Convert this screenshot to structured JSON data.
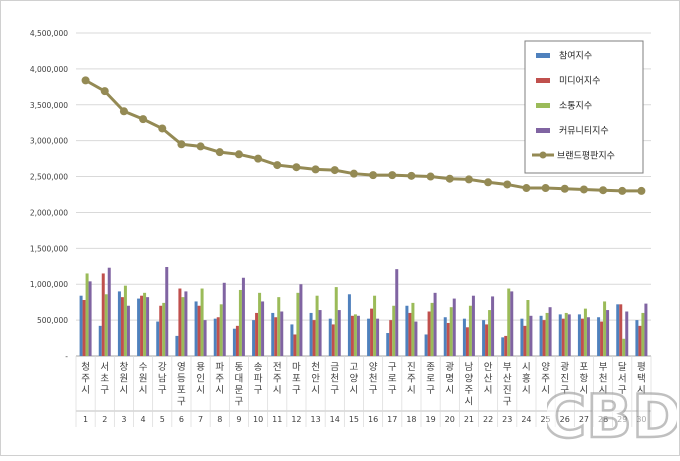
{
  "chart_data": {
    "type": "bar",
    "title": "",
    "xlabel": "",
    "ylabel": "",
    "ylim": [
      0,
      4500000
    ],
    "y_ticks": [
      "-",
      "500,000",
      "1,000,000",
      "1,500,000",
      "2,000,000",
      "2,500,000",
      "3,000,000",
      "3,500,000",
      "4,000,000",
      "4,500,000"
    ],
    "grid": true,
    "legend_position": "top-right",
    "categories": [
      "청주시",
      "서초구",
      "창원시",
      "수원시",
      "강남구",
      "영등포구",
      "용인시",
      "파주시",
      "동대문구",
      "송파구",
      "전주시",
      "마포구",
      "천안시",
      "금천구",
      "고양시",
      "양천구",
      "구로구",
      "진주시",
      "종로구",
      "광명시",
      "남양주시",
      "안산시",
      "부산진구",
      "시흥시",
      "양주시",
      "광진구",
      "포항시",
      "부천시",
      "달서구",
      "평택시"
    ],
    "ranks": [
      "1",
      "2",
      "3",
      "4",
      "5",
      "6",
      "7",
      "8",
      "9",
      "10",
      "11",
      "12",
      "13",
      "14",
      "15",
      "16",
      "17",
      "18",
      "19",
      "20",
      "21",
      "22",
      "23",
      "24",
      "25",
      "26",
      "27",
      "28",
      "29",
      "30"
    ],
    "series": [
      {
        "name": "참여지수",
        "kind": "bar",
        "color": "#4f81bd",
        "values": [
          840000,
          420000,
          900000,
          800000,
          480000,
          280000,
          760000,
          520000,
          380000,
          500000,
          600000,
          440000,
          600000,
          520000,
          860000,
          520000,
          320000,
          700000,
          300000,
          540000,
          520000,
          500000,
          260000,
          520000,
          560000,
          580000,
          580000,
          540000,
          720000,
          500000
        ]
      },
      {
        "name": "미디어지수",
        "kind": "bar",
        "color": "#c0504d",
        "values": [
          780000,
          1150000,
          820000,
          840000,
          700000,
          940000,
          700000,
          540000,
          420000,
          600000,
          540000,
          300000,
          500000,
          440000,
          560000,
          660000,
          500000,
          600000,
          620000,
          460000,
          400000,
          440000,
          280000,
          420000,
          500000,
          520000,
          520000,
          480000,
          720000,
          420000
        ]
      },
      {
        "name": "소통지수",
        "kind": "bar",
        "color": "#9bbb59",
        "values": [
          1150000,
          860000,
          980000,
          880000,
          740000,
          820000,
          940000,
          720000,
          920000,
          880000,
          820000,
          880000,
          840000,
          960000,
          580000,
          840000,
          700000,
          740000,
          740000,
          680000,
          700000,
          640000,
          940000,
          780000,
          600000,
          600000,
          660000,
          760000,
          240000,
          600000
        ]
      },
      {
        "name": "커뮤니티지수",
        "kind": "bar",
        "color": "#8064a2",
        "values": [
          1040000,
          1230000,
          700000,
          820000,
          1240000,
          900000,
          500000,
          1020000,
          1090000,
          760000,
          620000,
          1000000,
          640000,
          640000,
          560000,
          520000,
          1210000,
          480000,
          880000,
          800000,
          840000,
          830000,
          900000,
          560000,
          680000,
          580000,
          540000,
          640000,
          620000,
          730000
        ]
      },
      {
        "name": "브랜드평판지수",
        "kind": "line",
        "color": "#948a54",
        "values": [
          3840000,
          3690000,
          3410000,
          3300000,
          3170000,
          2950000,
          2920000,
          2840000,
          2810000,
          2750000,
          2660000,
          2630000,
          2600000,
          2590000,
          2540000,
          2520000,
          2520000,
          2510000,
          2500000,
          2470000,
          2460000,
          2420000,
          2390000,
          2340000,
          2340000,
          2330000,
          2320000,
          2310000,
          2300000,
          2300000
        ]
      }
    ]
  },
  "watermark": {
    "text": "CBD"
  }
}
